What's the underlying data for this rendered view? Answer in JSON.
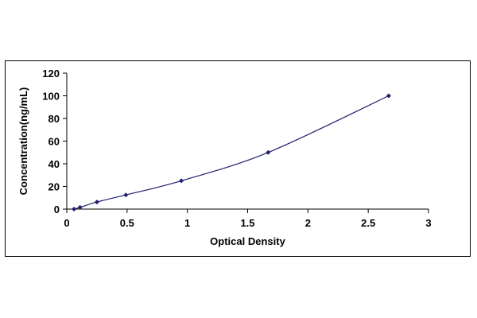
{
  "chart_data": {
    "type": "scatter",
    "title": "",
    "xlabel": "Optical Density",
    "ylabel": "Concentration(ng/mL)",
    "xlim": [
      0,
      3
    ],
    "ylim": [
      0,
      120
    ],
    "x_ticks": [
      0,
      0.5,
      1,
      1.5,
      2,
      2.5,
      3
    ],
    "x_tick_labels": [
      "0",
      "0.5",
      "1",
      "1.5",
      "2",
      "2.5",
      "3"
    ],
    "y_ticks": [
      0,
      20,
      40,
      60,
      80,
      100,
      120
    ],
    "y_tick_labels": [
      "0",
      "20",
      "40",
      "60",
      "80",
      "100",
      "120"
    ],
    "grid": false,
    "legend": "none",
    "marker_color": "#1f1f6e",
    "line_color": "#1f1f6e",
    "series": [
      {
        "points": [
          {
            "x": 0.06,
            "y": 0
          },
          {
            "x": 0.11,
            "y": 1.56
          },
          {
            "x": 0.25,
            "y": 6.25
          },
          {
            "x": 0.49,
            "y": 12.5
          },
          {
            "x": 0.95,
            "y": 25
          },
          {
            "x": 1.67,
            "y": 50
          },
          {
            "x": 2.67,
            "y": 100
          }
        ],
        "trendline": "smooth"
      }
    ]
  }
}
